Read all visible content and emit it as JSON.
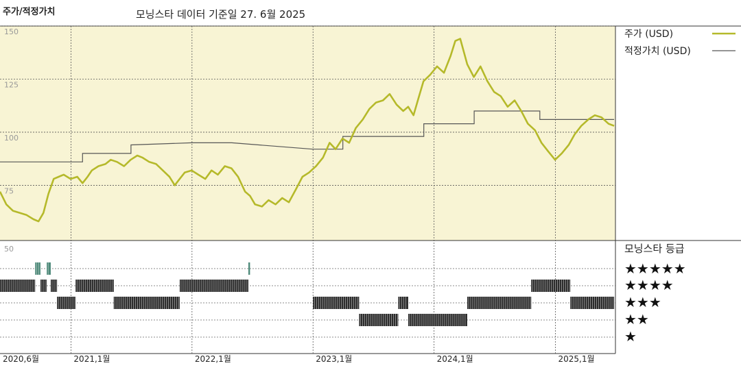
{
  "header": {
    "title": "주가/적정가치",
    "subtitle": "모닝스타 데이터 기준일 27. 6월 2025"
  },
  "legend": {
    "price_label": "주가 (USD)",
    "fair_label": "적정가치 (USD)",
    "rating_title": "모닝스타 등급",
    "stars": [
      "★★★★★",
      "★★★★",
      "★★★",
      "★★",
      "★"
    ]
  },
  "colors": {
    "price_line": "#b5b92a",
    "fair_line": "#555555",
    "plot_bg": "#f8f4d4",
    "rating_bar": "#2b2b2b",
    "rating_5star": "#4e8a7a"
  },
  "chart_data": {
    "type": "line",
    "y_ticks": [
      {
        "label": "150",
        "value": 150
      },
      {
        "label": "125",
        "value": 125
      },
      {
        "label": "100",
        "value": 100
      },
      {
        "label": "75",
        "value": 75
      }
    ],
    "ylim": [
      49,
      150
    ],
    "xlim": [
      "2020-06-01",
      "2025-07-01"
    ],
    "x_ticks": [
      {
        "label": "2020,6월",
        "date": "2020-06-01"
      },
      {
        "label": "2021,1월",
        "date": "2021-01-01"
      },
      {
        "label": "2022,1월",
        "date": "2022-01-01"
      },
      {
        "label": "2023,1월",
        "date": "2023-01-01"
      },
      {
        "label": "2024,1월",
        "date": "2024-01-01"
      },
      {
        "label": "2025,1월",
        "date": "2025-01-01"
      }
    ],
    "series": [
      {
        "name": "주가 (USD)",
        "points": [
          [
            "2020-06-01",
            72
          ],
          [
            "2020-06-20",
            66
          ],
          [
            "2020-07-10",
            63
          ],
          [
            "2020-07-31",
            62
          ],
          [
            "2020-08-20",
            61
          ],
          [
            "2020-09-10",
            59
          ],
          [
            "2020-09-25",
            58
          ],
          [
            "2020-10-10",
            62
          ],
          [
            "2020-10-25",
            71
          ],
          [
            "2020-11-10",
            78
          ],
          [
            "2020-11-25",
            79
          ],
          [
            "2020-12-10",
            80
          ],
          [
            "2020-12-31",
            78
          ],
          [
            "2021-01-20",
            79
          ],
          [
            "2021-02-05",
            76
          ],
          [
            "2021-02-20",
            79
          ],
          [
            "2021-03-05",
            82
          ],
          [
            "2021-03-25",
            84
          ],
          [
            "2021-04-15",
            85
          ],
          [
            "2021-05-01",
            87
          ],
          [
            "2021-05-20",
            86
          ],
          [
            "2021-06-10",
            84
          ],
          [
            "2021-06-30",
            87
          ],
          [
            "2021-07-20",
            89
          ],
          [
            "2021-08-05",
            88
          ],
          [
            "2021-08-25",
            86
          ],
          [
            "2021-09-15",
            85
          ],
          [
            "2021-10-05",
            82
          ],
          [
            "2021-10-25",
            79
          ],
          [
            "2021-11-10",
            75
          ],
          [
            "2021-11-25",
            78
          ],
          [
            "2021-12-10",
            81
          ],
          [
            "2021-12-31",
            82
          ],
          [
            "2022-01-20",
            80
          ],
          [
            "2022-02-10",
            78
          ],
          [
            "2022-03-01",
            82
          ],
          [
            "2022-03-20",
            80
          ],
          [
            "2022-04-10",
            84
          ],
          [
            "2022-04-30",
            83
          ],
          [
            "2022-05-20",
            79
          ],
          [
            "2022-06-10",
            72
          ],
          [
            "2022-06-25",
            70
          ],
          [
            "2022-07-10",
            66
          ],
          [
            "2022-07-31",
            65
          ],
          [
            "2022-08-20",
            68
          ],
          [
            "2022-09-10",
            66
          ],
          [
            "2022-09-30",
            69
          ],
          [
            "2022-10-20",
            67
          ],
          [
            "2022-11-10",
            73
          ],
          [
            "2022-11-30",
            79
          ],
          [
            "2022-12-20",
            81
          ],
          [
            "2023-01-10",
            84
          ],
          [
            "2023-01-31",
            88
          ],
          [
            "2023-02-20",
            95
          ],
          [
            "2023-03-10",
            92
          ],
          [
            "2023-03-31",
            97
          ],
          [
            "2023-04-20",
            95
          ],
          [
            "2023-05-10",
            102
          ],
          [
            "2023-05-31",
            106
          ],
          [
            "2023-06-20",
            111
          ],
          [
            "2023-07-10",
            114
          ],
          [
            "2023-07-31",
            115
          ],
          [
            "2023-08-20",
            118
          ],
          [
            "2023-09-10",
            113
          ],
          [
            "2023-09-30",
            110
          ],
          [
            "2023-10-15",
            112
          ],
          [
            "2023-10-31",
            108
          ],
          [
            "2023-11-15",
            116
          ],
          [
            "2023-11-30",
            124
          ],
          [
            "2023-12-20",
            127
          ],
          [
            "2024-01-10",
            131
          ],
          [
            "2024-01-31",
            128
          ],
          [
            "2024-02-20",
            136
          ],
          [
            "2024-03-05",
            143
          ],
          [
            "2024-03-20",
            144
          ],
          [
            "2024-04-10",
            132
          ],
          [
            "2024-04-30",
            126
          ],
          [
            "2024-05-20",
            131
          ],
          [
            "2024-06-10",
            124
          ],
          [
            "2024-06-30",
            119
          ],
          [
            "2024-07-20",
            117
          ],
          [
            "2024-08-10",
            112
          ],
          [
            "2024-08-31",
            115
          ],
          [
            "2024-09-20",
            110
          ],
          [
            "2024-10-10",
            104
          ],
          [
            "2024-10-31",
            101
          ],
          [
            "2024-11-20",
            95
          ],
          [
            "2024-12-10",
            91
          ],
          [
            "2024-12-31",
            87
          ],
          [
            "2025-01-20",
            90
          ],
          [
            "2025-02-10",
            94
          ],
          [
            "2025-02-28",
            99
          ],
          [
            "2025-03-20",
            103
          ],
          [
            "2025-04-10",
            106
          ],
          [
            "2025-04-30",
            108
          ],
          [
            "2025-05-20",
            107
          ],
          [
            "2025-06-10",
            104
          ],
          [
            "2025-06-27",
            103
          ]
        ]
      },
      {
        "name": "적정가치 (USD)",
        "step": true,
        "points": [
          [
            "2020-06-01",
            86
          ],
          [
            "2021-02-05",
            86
          ],
          [
            "2021-02-05",
            90
          ],
          [
            "2021-07-01",
            90
          ],
          [
            "2021-07-01",
            94
          ],
          [
            "2022-01-01",
            95
          ],
          [
            "2022-05-01",
            95
          ],
          [
            "2022-12-31",
            92
          ],
          [
            "2023-04-01",
            92
          ],
          [
            "2023-04-01",
            98
          ],
          [
            "2023-12-01",
            98
          ],
          [
            "2023-12-01",
            104
          ],
          [
            "2024-05-01",
            104
          ],
          [
            "2024-05-01",
            110
          ],
          [
            "2024-11-15",
            110
          ],
          [
            "2024-11-15",
            106
          ],
          [
            "2025-06-27",
            106
          ]
        ]
      }
    ],
    "ratings": {
      "levels": [
        5,
        4,
        3,
        2,
        1
      ],
      "periods": [
        {
          "start": "2020-06-01",
          "end": "2020-09-15",
          "stars": 4
        },
        {
          "start": "2020-09-15",
          "end": "2020-10-01",
          "stars": 5
        },
        {
          "start": "2020-10-01",
          "end": "2020-10-20",
          "stars": 4
        },
        {
          "start": "2020-10-20",
          "end": "2020-11-01",
          "stars": 5
        },
        {
          "start": "2020-11-01",
          "end": "2020-11-20",
          "stars": 4
        },
        {
          "start": "2020-11-20",
          "end": "2021-01-15",
          "stars": 3
        },
        {
          "start": "2021-01-15",
          "end": "2021-05-10",
          "stars": 4
        },
        {
          "start": "2021-05-10",
          "end": "2021-11-25",
          "stars": 3
        },
        {
          "start": "2021-11-25",
          "end": "2022-06-20",
          "stars": 4
        },
        {
          "start": "2022-06-20",
          "end": "2022-06-25",
          "stars": 5
        },
        {
          "start": "2023-01-01",
          "end": "2023-05-20",
          "stars": 3
        },
        {
          "start": "2023-05-20",
          "end": "2023-09-15",
          "stars": 2
        },
        {
          "start": "2023-09-15",
          "end": "2023-10-15",
          "stars": 3
        },
        {
          "start": "2023-10-15",
          "end": "2024-04-10",
          "stars": 2
        },
        {
          "start": "2024-04-10",
          "end": "2024-10-20",
          "stars": 3
        },
        {
          "start": "2024-10-20",
          "end": "2025-02-15",
          "stars": 4
        },
        {
          "start": "2025-02-15",
          "end": "2025-06-27",
          "stars": 3
        }
      ]
    },
    "rating_scale_label": "50"
  }
}
